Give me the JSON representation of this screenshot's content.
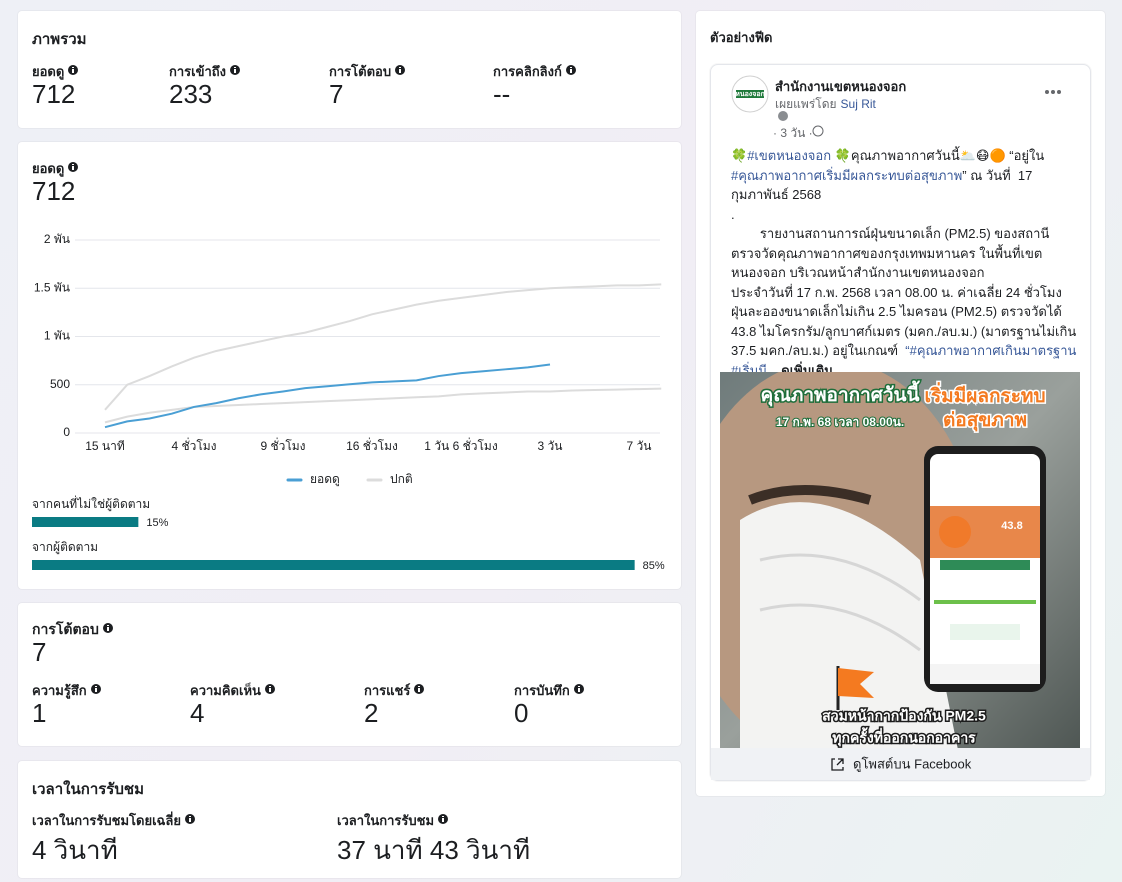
{
  "overview": {
    "title": "ภาพรวม",
    "metrics": [
      {
        "label": "ยอดดู",
        "value": "712"
      },
      {
        "label": "การเข้าถึง",
        "value": "233"
      },
      {
        "label": "การโต้ตอบ",
        "value": "7"
      },
      {
        "label": "การคลิกลิงก์",
        "value": "--"
      }
    ]
  },
  "views": {
    "label": "ยอดดู",
    "value": "712",
    "chart_data": {
      "type": "line",
      "categories": [
        "15 นาที",
        null,
        null,
        null,
        "4 ชั่วโมง",
        null,
        null,
        null,
        "9 ชั่วโมง",
        null,
        null,
        null,
        "16 ชั่วโมง",
        null,
        null,
        null,
        "1 วัน 6 ชั่วโมง",
        null,
        null,
        null,
        "3 วัน",
        null,
        null,
        null,
        "7 วัน",
        null
      ],
      "series": [
        {
          "name": "ยอดดู",
          "color": "#4a9fd4",
          "values": [
            60,
            120,
            150,
            200,
            270,
            310,
            360,
            400,
            430,
            465,
            485,
            505,
            525,
            535,
            545,
            590,
            620,
            640,
            660,
            680,
            710,
            null,
            null,
            null,
            null,
            null
          ]
        },
        {
          "name": "ปกติ",
          "color": "#dcdcdc",
          "values": [
            240,
            500,
            590,
            690,
            780,
            850,
            900,
            950,
            1000,
            1040,
            1100,
            1160,
            1230,
            1280,
            1330,
            1370,
            1400,
            1430,
            1460,
            1480,
            1500,
            1510,
            1520,
            1530,
            1530,
            1540
          ],
          "lower": [
            110,
            170,
            210,
            240,
            270,
            280,
            290,
            300,
            310,
            320,
            330,
            340,
            350,
            360,
            370,
            380,
            400,
            410,
            420,
            430,
            430,
            440,
            445,
            450,
            455,
            460
          ]
        }
      ],
      "ylim": [
        0,
        2000
      ],
      "yticks": [
        0,
        500,
        {
          "value": 1000,
          "label": "1 พัน"
        },
        {
          "value": 1500,
          "label": "1.5 พัน"
        },
        {
          "value": 2000,
          "label": "2 พัน"
        }
      ],
      "grid": true,
      "legend": "bottom"
    },
    "audience": {
      "type": "bar",
      "categories": [
        "จากคนที่ไม่ใช่ผู้ติดตาม",
        "จากผู้ติดตาม"
      ],
      "values": [
        15,
        85
      ],
      "value_labels": [
        "15%",
        "85%"
      ],
      "color": "#0a7b83",
      "xlim": [
        0,
        100
      ]
    }
  },
  "engagement": {
    "title": "การโต้ตอบ",
    "value": "7",
    "metrics": [
      {
        "label": "ความรู้สึก",
        "value": "1"
      },
      {
        "label": "ความคิดเห็น",
        "value": "4"
      },
      {
        "label": "การแชร์",
        "value": "2"
      },
      {
        "label": "การบันทึก",
        "value": "0"
      }
    ]
  },
  "watch_time": {
    "title": "เวลาในการรับชม",
    "metrics": [
      {
        "label": "เวลาในการรับชมโดยเฉลี่ย",
        "value": "4 วินาที"
      },
      {
        "label": "เวลาในการรับชม",
        "value": "37 นาที 43 วินาที"
      }
    ]
  },
  "preview": {
    "title": "ตัวอย่างฟีด",
    "post": {
      "logo": "หนองจอก",
      "page": "สำนักงานเขตหนองจอก",
      "published_by": "เผยแพร่โดย",
      "author": "Suj Rit",
      "time": "· 3 วัน ·",
      "paragraphs": [
        [
          {
            "text": "🍀"
          },
          {
            "text": "#เขตหนองจอก",
            "style": "link"
          },
          {
            "text": " 🍀คุณภาพอากาศวันนี้🌥️😷🟠 “อยู่ใน "
          },
          {
            "text": "#คุณภาพอากาศเริ่มมีผลกระทบต่อสุขภาพ",
            "style": "link"
          },
          {
            "text": "” ณ วันที่  17 กุมภาพันธ์ 2568"
          }
        ],
        [
          {
            "text": "."
          }
        ],
        [
          {
            "text": "        รายงานสถานการณ์ฝุ่นขนาดเล็ก (PM2.5) ของสถานีตรวจวัดคุณภาพอากาศของกรุงเทพมหานคร ในพื้นที่เขตหนองจอก บริเวณหน้าสำนักงานเขตหนองจอก"
          }
        ],
        [
          {
            "text": "ประจำวันที่ 17 ก.พ. 2568 เวลา 08.00 น. ค่าเฉลี่ย 24 ชั่วโมง ฝุ่นละอองขนาดเล็กไม่เกิน 2.5 ไมครอน (PM2.5) ตรวจวัดได้ 43.8 ไมโครกรัม/ลูกบาศก์เมตร (มคก./ลบ.ม.) (มาตรฐานไม่เกิน 37.5 มคก./ลบ.ม.) อยู่ในเกณฑ์  "
          },
          {
            "text": "“#คุณภาพอากาศเกินมาตรฐาน #เริ่มมี",
            "style": "link"
          },
          {
            "text": "... "
          },
          {
            "text": "ดูเพิ่มเติม",
            "style": "bold"
          }
        ]
      ],
      "image": {
        "headline": "คุณภาพอากาศวันนี้",
        "status": [
          "เริ่มมีผลกระทบ",
          "ต่อสุขภาพ"
        ],
        "date": "17 ก.พ. 68  เวลา 08.00น.",
        "reading": "43.8",
        "caption": [
          "สวมหน้ากากป้องกัน PM2.5",
          "ทุกครั้งที่ออกนอกอาคาร"
        ]
      },
      "footer": "ดูโพสต์บน Facebook"
    }
  }
}
